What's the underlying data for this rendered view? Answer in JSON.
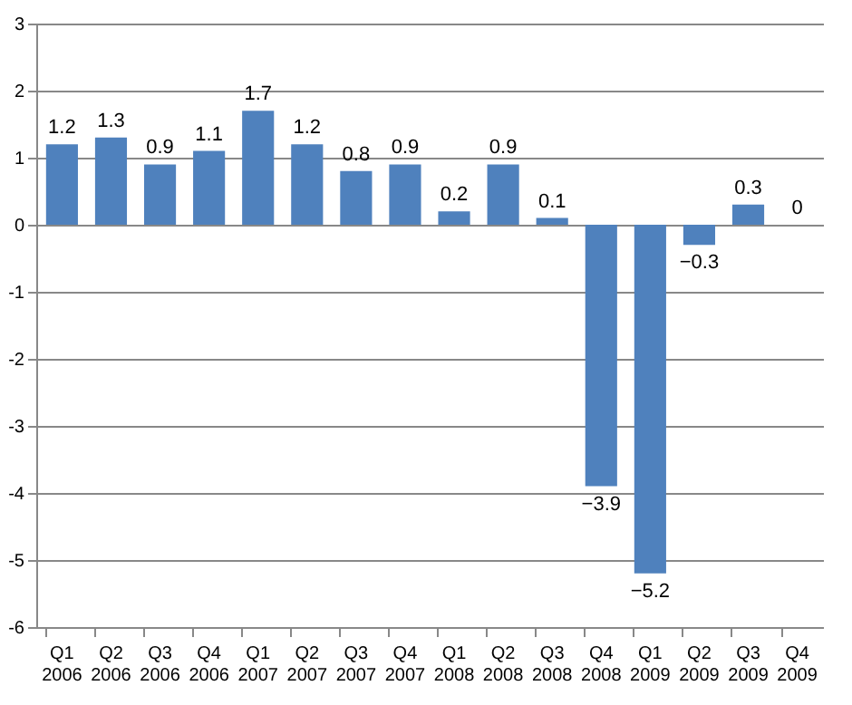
{
  "chart_data": {
    "type": "bar",
    "categories": [
      "Q1 2006",
      "Q2 2006",
      "Q3 2006",
      "Q4 2006",
      "Q1 2007",
      "Q2 2007",
      "Q3 2007",
      "Q4 2007",
      "Q1 2008",
      "Q2 2008",
      "Q3 2008",
      "Q4 2008",
      "Q1 2009",
      "Q2 2009",
      "Q3 2009",
      "Q4 2009"
    ],
    "values": [
      1.2,
      1.3,
      0.9,
      1.1,
      1.7,
      1.2,
      0.8,
      0.9,
      0.2,
      0.9,
      0.1,
      -3.9,
      -5.2,
      -0.3,
      0.3,
      0
    ],
    "color": "#4f81bd",
    "ylim": [
      -6,
      3
    ],
    "yticks": [
      -6,
      -5,
      -4,
      -3,
      -2,
      -1,
      0,
      1,
      2,
      3
    ],
    "grid": "y",
    "data_labels": true
  }
}
